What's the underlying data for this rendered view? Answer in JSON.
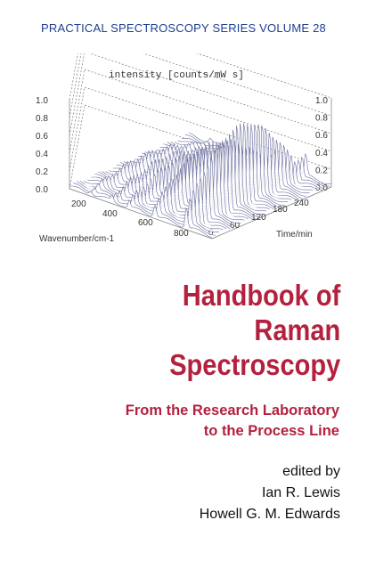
{
  "series": {
    "text": "PRACTICAL SPECTROSCOPY SERIES VOLUME 28"
  },
  "figure": {
    "z_axis_label": "intensity [counts/mW s]",
    "x_axis_label": "Wavenumber/cm-1",
    "y_axis_label": "Time/min",
    "z_ticks": [
      "1.0",
      "0.8",
      "0.6",
      "0.4",
      "0.2",
      "0.0"
    ],
    "x_ticks": [
      "200",
      "400",
      "600",
      "800"
    ],
    "y_ticks": [
      "0",
      "60",
      "120",
      "180",
      "240"
    ],
    "line_color": "#6a6f9e"
  },
  "title": {
    "line1": "Handbook of",
    "line2": "Raman",
    "line3": "Spectroscopy"
  },
  "subtitle": {
    "line1": "From the Research Laboratory",
    "line2": "to the Process Line"
  },
  "editors": {
    "edited_by": "edited by",
    "editor1": "Ian R. Lewis",
    "editor2": "Howell G. M. Edwards"
  },
  "colors": {
    "series_blue": "#1f3f91",
    "title_red": "#b3213e"
  }
}
